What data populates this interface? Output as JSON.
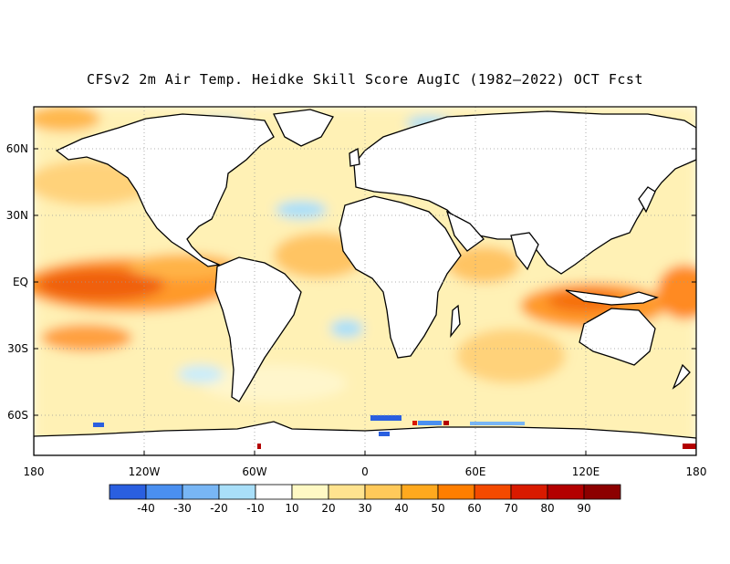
{
  "title": "CFSv2 2m Air Temp. Heidke Skill Score AugIC (1982–2022) OCT Fcst",
  "map": {
    "lat_ticks": [
      "60N",
      "30N",
      "EQ",
      "30S",
      "60S"
    ],
    "lon_ticks": [
      "180",
      "120W",
      "60W",
      "0",
      "60E",
      "120E",
      "180"
    ],
    "colors": {
      "ocean_warm_low": "#fff3c0",
      "land": "#ffffff",
      "coastline": "#000000",
      "grid": "#aaaaaa"
    }
  },
  "colorbar": {
    "labels": [
      "-40",
      "-30",
      "-20",
      "-10",
      "10",
      "20",
      "30",
      "40",
      "50",
      "60",
      "70",
      "80",
      "90"
    ],
    "colors": [
      "#2a5fe0",
      "#4a8ff0",
      "#78b6f5",
      "#a9dff9",
      "#ffffff",
      "#fff9c4",
      "#ffe38f",
      "#ffc95a",
      "#ffa91e",
      "#ff7e00",
      "#f44a00",
      "#d91a00",
      "#b30000",
      "#8c0000"
    ]
  }
}
